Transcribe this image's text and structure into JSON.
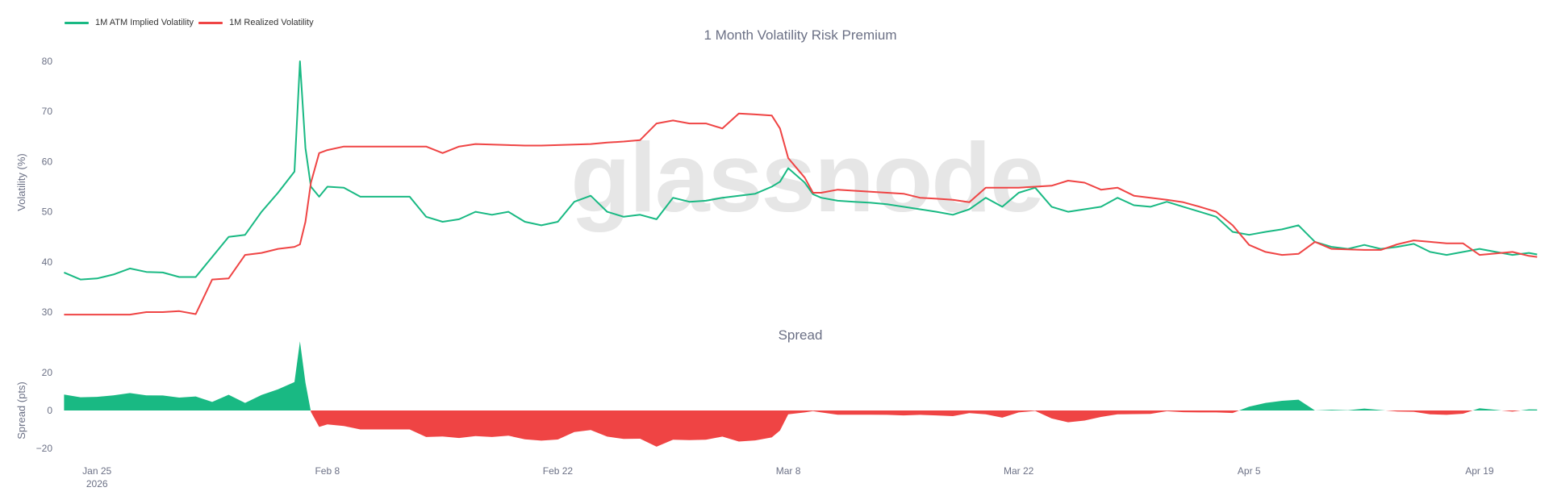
{
  "legend": [
    {
      "label": "1M ATM Implied Volatility",
      "color": "#19b983"
    },
    {
      "label": "1M Realized Volatility",
      "color": "#ef4444"
    }
  ],
  "watermark": "glassnode",
  "chart_data": [
    {
      "type": "line",
      "title": "1 Month Volatility Risk Premium",
      "ylabel": "Volatility (%)",
      "ylim": [
        27,
        82
      ],
      "yticks": [
        30,
        40,
        50,
        60,
        70,
        80
      ],
      "xlim": [
        "2026-01-22T20:00",
        "2026-04-22T14:00"
      ],
      "xticks": [
        {
          "date": "2026-01-25",
          "label": "Jan 25",
          "sublabel": "2026"
        },
        {
          "date": "2026-02-08",
          "label": "Feb 8"
        },
        {
          "date": "2026-02-22",
          "label": "Feb 22"
        },
        {
          "date": "2026-03-08",
          "label": "Mar 8"
        },
        {
          "date": "2026-03-22",
          "label": "Mar 22"
        },
        {
          "date": "2026-04-05",
          "label": "Apr 5"
        },
        {
          "date": "2026-04-19",
          "label": "Apr 19"
        }
      ],
      "grid": false,
      "legend_position": "top-left",
      "x": [
        "2026-01-23",
        "2026-01-24",
        "2026-01-25",
        "2026-01-26",
        "2026-01-27",
        "2026-01-28",
        "2026-01-29",
        "2026-01-30",
        "2026-01-31",
        "2026-02-01",
        "2026-02-02",
        "2026-02-03",
        "2026-02-04",
        "2026-02-05",
        "2026-02-06",
        "2026-02-06T08:00",
        "2026-02-06T16:00",
        "2026-02-07",
        "2026-02-07T12:00",
        "2026-02-08",
        "2026-02-09",
        "2026-02-10",
        "2026-02-11",
        "2026-02-12",
        "2026-02-13",
        "2026-02-14",
        "2026-02-15",
        "2026-02-16",
        "2026-02-17",
        "2026-02-18",
        "2026-02-19",
        "2026-02-20",
        "2026-02-21",
        "2026-02-22",
        "2026-02-23",
        "2026-02-24",
        "2026-02-25",
        "2026-02-26",
        "2026-02-27",
        "2026-02-28",
        "2026-03-01",
        "2026-03-02",
        "2026-03-03",
        "2026-03-04",
        "2026-03-05",
        "2026-03-06",
        "2026-03-07",
        "2026-03-07T12:00",
        "2026-03-08",
        "2026-03-09",
        "2026-03-09T12:00",
        "2026-03-10",
        "2026-03-11",
        "2026-03-12",
        "2026-03-13",
        "2026-03-14",
        "2026-03-15",
        "2026-03-16",
        "2026-03-17",
        "2026-03-18",
        "2026-03-19",
        "2026-03-20",
        "2026-03-21",
        "2026-03-22",
        "2026-03-23",
        "2026-03-24",
        "2026-03-25",
        "2026-03-26",
        "2026-03-27",
        "2026-03-28",
        "2026-03-29",
        "2026-03-30",
        "2026-03-31",
        "2026-04-01",
        "2026-04-02",
        "2026-04-03",
        "2026-04-04",
        "2026-04-05",
        "2026-04-06",
        "2026-04-07",
        "2026-04-08",
        "2026-04-09",
        "2026-04-10",
        "2026-04-11",
        "2026-04-12",
        "2026-04-13",
        "2026-04-14",
        "2026-04-15",
        "2026-04-16",
        "2026-04-17",
        "2026-04-18",
        "2026-04-19",
        "2026-04-20",
        "2026-04-21",
        "2026-04-22",
        "2026-04-22T12:00"
      ],
      "series": [
        {
          "name": "1M ATM Implied Volatility",
          "color": "#19b983",
          "values": [
            37.9,
            36.5,
            36.7,
            37.5,
            38.7,
            38.0,
            37.9,
            37.0,
            37.0,
            41.0,
            45.0,
            45.4,
            50.0,
            53.8,
            58.0,
            80.0,
            62.7,
            55.0,
            53.0,
            55.0,
            54.8,
            53.0,
            53.0,
            53.0,
            53.0,
            49.0,
            48.0,
            48.5,
            50.0,
            49.4,
            50.0,
            48.0,
            47.3,
            48.0,
            52.0,
            53.2,
            50.0,
            49.0,
            49.4,
            48.5,
            52.8,
            52.0,
            52.2,
            52.8,
            53.2,
            53.6,
            55.0,
            56.0,
            58.7,
            55.8,
            53.5,
            52.8,
            52.2,
            52.0,
            51.8,
            51.5,
            51.0,
            50.5,
            50.0,
            49.4,
            50.5,
            52.8,
            51.0,
            53.8,
            54.8,
            51.0,
            50.0,
            50.5,
            51.0,
            52.8,
            51.3,
            51.0,
            52.0,
            51.0,
            50.0,
            49.0,
            46.0,
            45.4,
            46.0,
            46.5,
            47.3,
            44.0,
            43.0,
            42.6,
            43.4,
            42.6,
            43.0,
            43.6,
            42.0,
            41.4,
            42.0,
            42.6,
            42.0,
            41.4,
            41.8,
            41.5
          ]
        },
        {
          "name": "1M Realized Volatility",
          "color": "#ef4444",
          "values": [
            29.5,
            29.5,
            29.5,
            29.5,
            29.5,
            30.0,
            30.0,
            30.2,
            29.6,
            36.5,
            36.7,
            41.4,
            41.8,
            42.6,
            43.0,
            43.5,
            48.0,
            55.8,
            61.7,
            62.3,
            63.0,
            63.0,
            63.0,
            63.0,
            63.0,
            63.0,
            61.7,
            63.0,
            63.5,
            63.4,
            63.3,
            63.2,
            63.2,
            63.3,
            63.4,
            63.5,
            63.8,
            64.0,
            64.3,
            67.6,
            68.2,
            67.6,
            67.6,
            66.6,
            69.6,
            69.4,
            69.2,
            66.6,
            60.7,
            56.8,
            53.8,
            53.8,
            54.4,
            54.2,
            54.0,
            53.8,
            53.6,
            52.8,
            52.6,
            52.4,
            51.9,
            54.8,
            54.8,
            54.8,
            55.0,
            55.2,
            56.2,
            55.8,
            54.4,
            54.8,
            53.2,
            52.8,
            52.4,
            51.9,
            51.0,
            50.0,
            47.3,
            43.4,
            42.0,
            41.4,
            41.6,
            44.0,
            42.6,
            42.5,
            42.4,
            42.4,
            43.5,
            44.3,
            44.0,
            43.7,
            43.7,
            41.4,
            41.7,
            42.0,
            41.2,
            41.0
          ]
        }
      ]
    },
    {
      "type": "area",
      "title": "Spread",
      "ylabel": "Spread (pts)",
      "ylim": [
        -26,
        32
      ],
      "yticks": [
        -20,
        0,
        20
      ],
      "positive_color": "#19b983",
      "negative_color": "#ef4444",
      "definition": "1M ATM Implied Volatility minus 1M Realized Volatility",
      "grid": false
    }
  ]
}
